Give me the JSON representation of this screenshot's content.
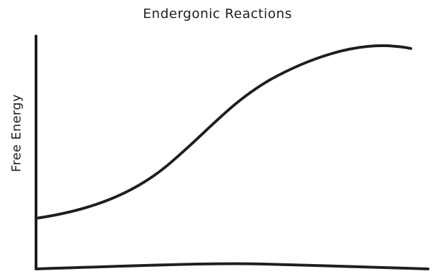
{
  "diagram": {
    "title": "Endergonic Reactions",
    "y_axis_label": "Free Energy",
    "stroke_color": "#1e1e1e",
    "background_color": "#ffffff",
    "curve_shape": "rising-s-curve"
  }
}
